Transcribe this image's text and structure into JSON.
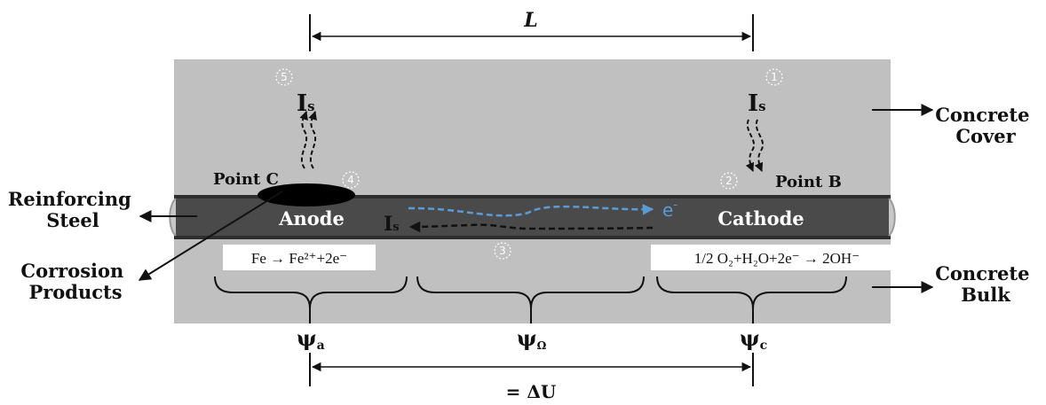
{
  "top_dimension": {
    "label": "L"
  },
  "bottom_dimension": {
    "label": "= ΔU"
  },
  "side_labels": {
    "concrete_cover": [
      "Concrete",
      "Cover"
    ],
    "concrete_bulk": [
      "Concrete",
      "Bulk"
    ],
    "reinforcing_steel": [
      "Reinforcing",
      "Steel"
    ],
    "corrosion_products": [
      "Corrosion",
      "Products"
    ]
  },
  "steel": {
    "anode": "Anode",
    "cathode": "Cathode"
  },
  "points": {
    "c": "Point C",
    "b": "Point B"
  },
  "current": {
    "symbol": "I",
    "subscript": "s"
  },
  "electron": {
    "symbol": "e",
    "superscript": "-"
  },
  "markers": {
    "m1": "1",
    "m2": "2",
    "m3": "3",
    "m4": "4",
    "m5": "5"
  },
  "reactions": {
    "anodic": "Fe → Fe²⁺+2e⁻",
    "cathodic": "1/2 O₂+H₂O+2e⁻ → 2OH⁻"
  },
  "potentials": {
    "a": {
      "symbol": "ψ",
      "sub": "a"
    },
    "omega": {
      "symbol": "ψ",
      "sub": "Ω"
    },
    "c": {
      "symbol": "ψ",
      "sub": "c"
    }
  },
  "colors": {
    "concrete": "#c0c0c0",
    "steel": "#4a4a4a",
    "electron_flow": "#5b9bd5",
    "current_flow": "#111111",
    "corrosion_product": "#000000"
  }
}
